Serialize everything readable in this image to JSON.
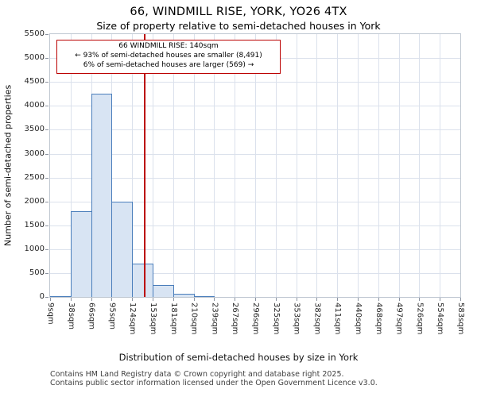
{
  "title": "66, WINDMILL RISE, YORK, YO26 4TX",
  "subtitle": "Size of property relative to semi-detached houses in York",
  "annotation": {
    "line1": "66 WINDMILL RISE: 140sqm",
    "line2": "← 93% of semi-detached houses are smaller (8,491)",
    "line3": "6% of semi-detached houses are larger (569) →"
  },
  "footer": {
    "line1": "Contains HM Land Registry data © Crown copyright and database right 2025.",
    "line2": "Contains public sector information licensed under the Open Government Licence v3.0."
  },
  "chart_data": {
    "type": "bar",
    "title": "66, WINDMILL RISE, YORK, YO26 4TX — Size of property relative to semi-detached houses in York",
    "xlabel": "Distribution of semi-detached houses by size in York",
    "ylabel": "Number of semi-detached properties",
    "categories": [
      "9sqm",
      "38sqm",
      "66sqm",
      "95sqm",
      "124sqm",
      "153sqm",
      "181sqm",
      "210sqm",
      "239sqm",
      "267sqm",
      "296sqm",
      "325sqm",
      "353sqm",
      "382sqm",
      "411sqm",
      "440sqm",
      "468sqm",
      "497sqm",
      "526sqm",
      "554sqm",
      "583sqm"
    ],
    "bin_edges_sqm": [
      9,
      38,
      66,
      95,
      124,
      153,
      181,
      210,
      239,
      267,
      296,
      325,
      353,
      382,
      411,
      440,
      468,
      497,
      526,
      554,
      583
    ],
    "values": [
      10,
      1800,
      4250,
      2000,
      700,
      250,
      75,
      20,
      0,
      0,
      0,
      0,
      0,
      0,
      0,
      0,
      0,
      0,
      0,
      0
    ],
    "ylim": [
      0,
      5500
    ],
    "ytick_step": 500,
    "grid": true,
    "legend": "none",
    "marker": {
      "value_sqm": 140,
      "color": "#bb0000"
    },
    "colors": {
      "bar_fill": "#d8e4f3",
      "bar_border": "#4a7ebb",
      "grid": "#dbe1ec",
      "marker": "#bb0000"
    }
  }
}
